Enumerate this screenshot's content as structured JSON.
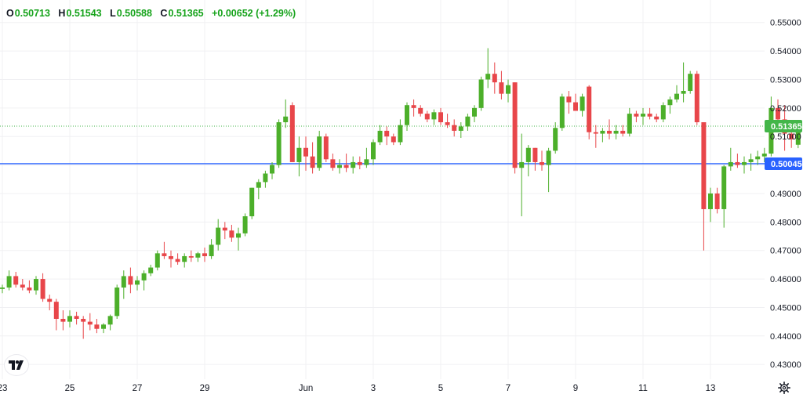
{
  "legend": {
    "o_key": "O",
    "o_val": "0.50713",
    "h_key": "H",
    "h_val": "0.51543",
    "l_key": "L",
    "l_val": "0.50588",
    "c_key": "C",
    "c_val": "0.51365",
    "change": "+0.00652 (+1.29%)"
  },
  "colors": {
    "up": "#4caf2a",
    "down": "#e8464a",
    "grid": "#f0f0f3",
    "hline": "#2962ff",
    "last_line": "#43b649",
    "last_tag": "#43b649",
    "hline_tag": "#2962ff"
  },
  "tags": {
    "last_price": "0.51365",
    "hline_price": "0.50045"
  },
  "icons": {
    "logo": "tradingview-logo-icon",
    "settings": "gear-icon"
  },
  "chart_data": {
    "type": "candlestick",
    "title": "",
    "xlabel": "",
    "ylabel": "",
    "ylim": [
      0.4262,
      0.5535
    ],
    "y_ticks": [
      "0.55000",
      "0.54000",
      "0.53000",
      "0.52000",
      "0.51000",
      "0.50000",
      "0.49000",
      "0.48000",
      "0.47000",
      "0.46000",
      "0.45000",
      "0.44000",
      "0.43000"
    ],
    "x_ticks": [
      "23",
      "25",
      "27",
      "29",
      "Jun",
      "3",
      "5",
      "7",
      "9",
      "11",
      "13"
    ],
    "x_tick_positions": [
      0,
      10,
      20,
      30,
      45,
      55,
      65,
      75,
      85,
      95,
      105
    ],
    "horizontal_line": 0.50045,
    "last_price": 0.51365,
    "grid": true,
    "bar_interval": "4 hours",
    "candles": [
      [
        0.4565,
        0.458,
        0.455,
        0.457
      ],
      [
        0.457,
        0.463,
        0.456,
        0.461
      ],
      [
        0.461,
        0.4625,
        0.457,
        0.458
      ],
      [
        0.458,
        0.46,
        0.456,
        0.457
      ],
      [
        0.457,
        0.4595,
        0.455,
        0.456
      ],
      [
        0.456,
        0.461,
        0.4545,
        0.46
      ],
      [
        0.46,
        0.462,
        0.452,
        0.453
      ],
      [
        0.453,
        0.4545,
        0.449,
        0.452
      ],
      [
        0.452,
        0.453,
        0.442,
        0.446
      ],
      [
        0.446,
        0.449,
        0.442,
        0.445
      ],
      [
        0.445,
        0.449,
        0.443,
        0.447
      ],
      [
        0.447,
        0.4485,
        0.444,
        0.446
      ],
      [
        0.446,
        0.447,
        0.439,
        0.445
      ],
      [
        0.445,
        0.448,
        0.442,
        0.444
      ],
      [
        0.444,
        0.446,
        0.441,
        0.4425
      ],
      [
        0.4425,
        0.4445,
        0.441,
        0.444
      ],
      [
        0.444,
        0.4475,
        0.442,
        0.447
      ],
      [
        0.447,
        0.458,
        0.446,
        0.457
      ],
      [
        0.457,
        0.463,
        0.453,
        0.461
      ],
      [
        0.461,
        0.464,
        0.455,
        0.458
      ],
      [
        0.458,
        0.461,
        0.456,
        0.4595
      ],
      [
        0.4595,
        0.463,
        0.456,
        0.462
      ],
      [
        0.462,
        0.465,
        0.461,
        0.464
      ],
      [
        0.464,
        0.47,
        0.463,
        0.469
      ],
      [
        0.469,
        0.473,
        0.467,
        0.468
      ],
      [
        0.468,
        0.47,
        0.464,
        0.467
      ],
      [
        0.467,
        0.469,
        0.465,
        0.466
      ],
      [
        0.466,
        0.469,
        0.464,
        0.468
      ],
      [
        0.468,
        0.47,
        0.466,
        0.4675
      ],
      [
        0.4675,
        0.4695,
        0.466,
        0.469
      ],
      [
        0.469,
        0.471,
        0.466,
        0.468
      ],
      [
        0.468,
        0.474,
        0.467,
        0.472
      ],
      [
        0.472,
        0.481,
        0.47,
        0.478
      ],
      [
        0.478,
        0.48,
        0.474,
        0.477
      ],
      [
        0.477,
        0.479,
        0.473,
        0.4745
      ],
      [
        0.4745,
        0.478,
        0.47,
        0.476
      ],
      [
        0.476,
        0.483,
        0.475,
        0.482
      ],
      [
        0.482,
        0.492,
        0.481,
        0.492
      ],
      [
        0.492,
        0.495,
        0.488,
        0.494
      ],
      [
        0.494,
        0.498,
        0.492,
        0.497
      ],
      [
        0.497,
        0.501,
        0.495,
        0.5
      ],
      [
        0.5,
        0.516,
        0.499,
        0.515
      ],
      [
        0.515,
        0.523,
        0.513,
        0.517
      ],
      [
        0.521,
        0.522,
        0.502,
        0.501
      ],
      [
        0.501,
        0.51,
        0.496,
        0.506
      ],
      [
        0.506,
        0.51,
        0.498,
        0.503
      ],
      [
        0.503,
        0.508,
        0.497,
        0.499
      ],
      [
        0.499,
        0.512,
        0.498,
        0.51
      ],
      [
        0.51,
        0.511,
        0.501,
        0.502
      ],
      [
        0.502,
        0.504,
        0.498,
        0.499
      ],
      [
        0.499,
        0.502,
        0.497,
        0.5
      ],
      [
        0.5,
        0.504,
        0.4975,
        0.499
      ],
      [
        0.499,
        0.503,
        0.497,
        0.501
      ],
      [
        0.501,
        0.503,
        0.4985,
        0.5
      ],
      [
        0.5,
        0.506,
        0.499,
        0.502
      ],
      [
        0.502,
        0.509,
        0.5,
        0.508
      ],
      [
        0.508,
        0.514,
        0.507,
        0.512
      ],
      [
        0.512,
        0.5135,
        0.507,
        0.51
      ],
      [
        0.51,
        0.511,
        0.507,
        0.508
      ],
      [
        0.508,
        0.516,
        0.507,
        0.514
      ],
      [
        0.514,
        0.522,
        0.512,
        0.521
      ],
      [
        0.521,
        0.523,
        0.517,
        0.52
      ],
      [
        0.52,
        0.521,
        0.517,
        0.518
      ],
      [
        0.518,
        0.519,
        0.515,
        0.516
      ],
      [
        0.516,
        0.5195,
        0.514,
        0.5185
      ],
      [
        0.5185,
        0.52,
        0.514,
        0.515
      ],
      [
        0.515,
        0.518,
        0.513,
        0.514
      ],
      [
        0.514,
        0.516,
        0.51,
        0.512
      ],
      [
        0.512,
        0.515,
        0.5095,
        0.5135
      ],
      [
        0.5135,
        0.518,
        0.512,
        0.517
      ],
      [
        0.517,
        0.521,
        0.515,
        0.52
      ],
      [
        0.52,
        0.531,
        0.519,
        0.53
      ],
      [
        0.53,
        0.541,
        0.527,
        0.532
      ],
      [
        0.532,
        0.536,
        0.525,
        0.529
      ],
      [
        0.529,
        0.533,
        0.523,
        0.525
      ],
      [
        0.525,
        0.53,
        0.522,
        0.528
      ],
      [
        0.529,
        0.529,
        0.497,
        0.499
      ],
      [
        0.499,
        0.511,
        0.482,
        0.501
      ],
      [
        0.501,
        0.507,
        0.496,
        0.506
      ],
      [
        0.506,
        0.506,
        0.498,
        0.501
      ],
      [
        0.501,
        0.505,
        0.498,
        0.5
      ],
      [
        0.5,
        0.506,
        0.4905,
        0.505
      ],
      [
        0.505,
        0.515,
        0.504,
        0.513
      ],
      [
        0.513,
        0.525,
        0.512,
        0.524
      ],
      [
        0.524,
        0.526,
        0.518,
        0.522
      ],
      [
        0.522,
        0.525,
        0.519,
        0.519
      ],
      [
        0.519,
        0.525,
        0.517,
        0.524
      ],
      [
        0.5275,
        0.528,
        0.509,
        0.5115
      ],
      [
        0.5115,
        0.514,
        0.506,
        0.511
      ],
      [
        0.511,
        0.513,
        0.508,
        0.512
      ],
      [
        0.512,
        0.516,
        0.509,
        0.511
      ],
      [
        0.511,
        0.514,
        0.509,
        0.512
      ],
      [
        0.512,
        0.514,
        0.51,
        0.511
      ],
      [
        0.511,
        0.52,
        0.51,
        0.518
      ],
      [
        0.518,
        0.519,
        0.515,
        0.517
      ],
      [
        0.517,
        0.52,
        0.514,
        0.518
      ],
      [
        0.518,
        0.52,
        0.516,
        0.517
      ],
      [
        0.517,
        0.518,
        0.515,
        0.516
      ],
      [
        0.516,
        0.522,
        0.515,
        0.521
      ],
      [
        0.521,
        0.524,
        0.518,
        0.523
      ],
      [
        0.523,
        0.528,
        0.522,
        0.525
      ],
      [
        0.525,
        0.536,
        0.522,
        0.526
      ],
      [
        0.526,
        0.533,
        0.525,
        0.532
      ],
      [
        0.532,
        0.533,
        0.514,
        0.515
      ],
      [
        0.515,
        0.515,
        0.47,
        0.4845
      ],
      [
        0.4845,
        0.492,
        0.48,
        0.49
      ],
      [
        0.49,
        0.492,
        0.483,
        0.4845
      ],
      [
        0.4845,
        0.5,
        0.478,
        0.4995
      ],
      [
        0.4995,
        0.506,
        0.498,
        0.501
      ],
      [
        0.501,
        0.504,
        0.499,
        0.5
      ],
      [
        0.5,
        0.503,
        0.497,
        0.501
      ],
      [
        0.501,
        0.504,
        0.498,
        0.502
      ],
      [
        0.502,
        0.505,
        0.5,
        0.503
      ],
      [
        0.503,
        0.506,
        0.501,
        0.504
      ],
      [
        0.504,
        0.524,
        0.503,
        0.52
      ],
      [
        0.52,
        0.523,
        0.514,
        0.516
      ],
      [
        0.516,
        0.521,
        0.505,
        0.511
      ],
      [
        0.511,
        0.514,
        0.506,
        0.509
      ],
      [
        0.5071,
        0.5154,
        0.5059,
        0.5137
      ]
    ]
  }
}
